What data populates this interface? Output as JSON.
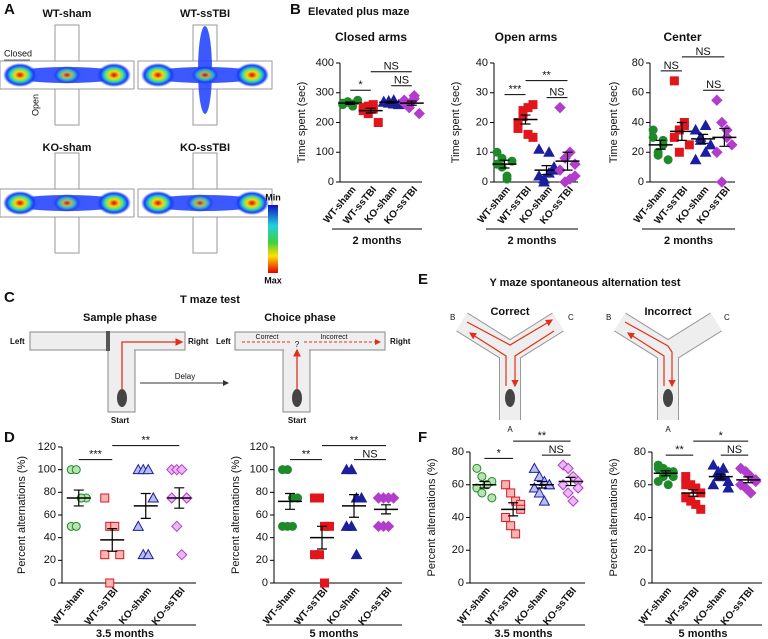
{
  "panel_a": {
    "label": "A",
    "maps": [
      "WT-sham",
      "WT-ssTBI",
      "KO-sham",
      "KO-ssTBI"
    ],
    "closed": "Closed",
    "open": "Open",
    "scale_min": "Min",
    "scale_max": "Max"
  },
  "panel_b": {
    "label": "B",
    "title": "Elevated plus maze"
  },
  "panel_c": {
    "label": "C",
    "title": "T maze test",
    "sample_phase": "Sample phase",
    "choice_phase": "Choice phase",
    "left": "Left",
    "right": "Right",
    "start": "Start",
    "delay": "Delay",
    "correct": "Correct",
    "incorrect": "Incorrect",
    "unknown": "?"
  },
  "panel_d": {
    "label": "D"
  },
  "panel_e": {
    "label": "E",
    "title": "Y maze spontaneous alternation test",
    "correct": "Correct",
    "incorrect": "Incorrect",
    "arm_a": "A",
    "arm_b": "B",
    "arm_c": "C"
  },
  "panel_f": {
    "label": "F"
  },
  "chart_data": [
    {
      "type": "dot",
      "title": "Closed arms",
      "ylabel": "Time spent (sec)",
      "xlabel": "2 months",
      "categories": [
        "WT-sham",
        "WT-ssTBI",
        "KO-sham",
        "KO-ssTBI"
      ],
      "ylim": [
        0,
        400
      ],
      "yticks": [
        0,
        100,
        200,
        300,
        400
      ],
      "annotations": [
        "*",
        "NS",
        "NS"
      ],
      "groups": [
        {
          "marker": "circle",
          "color": "#1f8a2a",
          "fill": "#1f8a2a",
          "points": [
            265,
            270,
            255,
            275,
            260,
            268,
            262
          ],
          "mean": 265,
          "sem": 4
        },
        {
          "marker": "square",
          "color": "#e0161c",
          "fill": "#e0161c",
          "points": [
            250,
            230,
            260,
            200,
            240,
            255,
            245
          ],
          "mean": 240,
          "sem": 8
        },
        {
          "marker": "triangle",
          "color": "#1b1f9e",
          "fill": "#1b1f9e",
          "points": [
            270,
            265,
            275,
            260,
            268,
            272,
            262
          ],
          "mean": 268,
          "sem": 3
        },
        {
          "marker": "diamond",
          "color": "#b23ccc",
          "fill": "#b23ccc",
          "points": [
            275,
            250,
            290,
            230,
            265,
            260,
            280
          ],
          "mean": 265,
          "sem": 7
        }
      ]
    },
    {
      "type": "dot",
      "title": "Open arms",
      "ylabel": "Time spent (sec)",
      "xlabel": "2 months",
      "categories": [
        "WT-sham",
        "WT-ssTBI",
        "KO-sham",
        "KO-ssTBI"
      ],
      "ylim": [
        0,
        40
      ],
      "yticks": [
        0,
        10,
        20,
        30,
        40
      ],
      "annotations": [
        "***",
        "**",
        "NS"
      ],
      "groups": [
        {
          "marker": "circle",
          "color": "#1f8a2a",
          "fill": "#1f8a2a",
          "points": [
            6,
            8,
            2,
            7,
            10,
            5,
            1
          ],
          "mean": 6,
          "sem": 1.3
        },
        {
          "marker": "square",
          "color": "#e0161c",
          "fill": "#e0161c",
          "points": [
            20,
            22,
            25,
            15,
            18,
            24,
            16,
            26
          ],
          "mean": 21,
          "sem": 1.5
        },
        {
          "marker": "triangle",
          "color": "#1b1f9e",
          "fill": "#1b1f9e",
          "points": [
            2,
            1,
            10,
            4,
            11,
            0,
            3,
            5
          ],
          "mean": 4,
          "sem": 1.5
        },
        {
          "marker": "diamond",
          "color": "#b23ccc",
          "fill": "#b23ccc",
          "points": [
            25,
            8,
            10,
            2,
            4,
            0,
            1,
            6
          ],
          "mean": 7,
          "sem": 3
        }
      ]
    },
    {
      "type": "dot",
      "title": "Center",
      "ylabel": "Time spent (sec)",
      "xlabel": "2 months",
      "categories": [
        "WT-sham",
        "WT-ssTBI",
        "KO-sham",
        "KO-ssTBI"
      ],
      "ylim": [
        0,
        80
      ],
      "yticks": [
        0,
        20,
        40,
        60,
        80
      ],
      "annotations": [
        "NS",
        "NS",
        "NS"
      ],
      "groups": [
        {
          "marker": "circle",
          "color": "#1f8a2a",
          "fill": "#1f8a2a",
          "points": [
            35,
            20,
            25,
            15,
            30,
            18,
            28
          ],
          "mean": 25,
          "sem": 3
        },
        {
          "marker": "square",
          "color": "#e0161c",
          "fill": "#e0161c",
          "points": [
            68,
            35,
            40,
            25,
            30,
            20,
            38
          ],
          "mean": 34,
          "sem": 6
        },
        {
          "marker": "triangle",
          "color": "#1b1f9e",
          "fill": "#1b1f9e",
          "points": [
            35,
            30,
            20,
            25,
            15,
            28,
            38
          ],
          "mean": 29,
          "sem": 3
        },
        {
          "marker": "diamond",
          "color": "#b23ccc",
          "fill": "#b23ccc",
          "points": [
            55,
            40,
            30,
            25,
            20,
            0,
            35
          ],
          "mean": 30,
          "sem": 6
        }
      ]
    },
    {
      "type": "dot",
      "ylabel": "Percent alternations (%)",
      "xlabel": "3.5 months",
      "categories": [
        "WT-sham",
        "WT-ssTBI",
        "KO-sham",
        "KO-ssTBI"
      ],
      "ylim": [
        0,
        120
      ],
      "yticks": [
        0,
        20,
        40,
        60,
        80,
        100,
        120
      ],
      "annotations": [
        "***",
        "**"
      ],
      "groups": [
        {
          "marker": "circle",
          "color": "#1f8a2a",
          "fill": "#b9e3b0",
          "points": [
            100,
            100,
            75,
            75,
            50,
            50,
            75
          ],
          "mean": 75,
          "sem": 7
        },
        {
          "marker": "square",
          "color": "#e0161c",
          "fill": "#f7b6b6",
          "points": [
            75,
            50,
            50,
            25,
            25,
            0
          ],
          "mean": 38,
          "sem": 10
        },
        {
          "marker": "triangle",
          "color": "#1b1f9e",
          "fill": "#b9bdf0",
          "points": [
            100,
            100,
            100,
            75,
            50,
            25,
            25,
            75
          ],
          "mean": 68,
          "sem": 11
        },
        {
          "marker": "diamond",
          "color": "#b23ccc",
          "fill": "#ebb9f2",
          "points": [
            100,
            100,
            100,
            75,
            75,
            50,
            25,
            75
          ],
          "mean": 75,
          "sem": 9
        }
      ]
    },
    {
      "type": "dot",
      "ylabel": "Percent alternations (%)",
      "xlabel": "5 months",
      "categories": [
        "WT-sham",
        "WT-ssTBI",
        "KO-sham",
        "KO-ssTBI"
      ],
      "ylim": [
        0,
        120
      ],
      "yticks": [
        0,
        20,
        40,
        60,
        80,
        100,
        120
      ],
      "annotations": [
        "**",
        "**",
        "NS"
      ],
      "groups": [
        {
          "marker": "circle",
          "color": "#1f8a2a",
          "fill": "#1f8a2a",
          "points": [
            100,
            100,
            75,
            75,
            50,
            50,
            50,
            75
          ],
          "mean": 72,
          "sem": 7
        },
        {
          "marker": "square",
          "color": "#e0161c",
          "fill": "#e0161c",
          "points": [
            75,
            75,
            50,
            50,
            25,
            25,
            0
          ],
          "mean": 40,
          "sem": 10
        },
        {
          "marker": "triangle",
          "color": "#1b1f9e",
          "fill": "#1b1f9e",
          "points": [
            100,
            100,
            75,
            75,
            50,
            50,
            25
          ],
          "mean": 68,
          "sem": 10
        },
        {
          "marker": "diamond",
          "color": "#b23ccc",
          "fill": "#b23ccc",
          "points": [
            75,
            75,
            75,
            75,
            50,
            50,
            50
          ],
          "mean": 65,
          "sem": 4
        }
      ]
    },
    {
      "type": "dot",
      "ylabel": "Percent alternations (%)",
      "xlabel": "3.5 months",
      "categories": [
        "WT-sham",
        "WT-ssTBI",
        "KO-sham",
        "KO-ssTBI"
      ],
      "ylim": [
        0,
        80
      ],
      "yticks": [
        0,
        20,
        40,
        60,
        80
      ],
      "annotations": [
        "*",
        "**",
        "NS"
      ],
      "groups": [
        {
          "marker": "circle",
          "color": "#1f8a2a",
          "fill": "#b9e3b0",
          "points": [
            70,
            65,
            60,
            62,
            58,
            55,
            60,
            52
          ],
          "mean": 60,
          "sem": 2
        },
        {
          "marker": "square",
          "color": "#e0161c",
          "fill": "#f7b6b6",
          "points": [
            60,
            55,
            50,
            48,
            40,
            35,
            30,
            45
          ],
          "mean": 45,
          "sem": 4
        },
        {
          "marker": "triangle",
          "color": "#1b1f9e",
          "fill": "#b9bdf0",
          "points": [
            70,
            65,
            62,
            60,
            58,
            55,
            50,
            60
          ],
          "mean": 60,
          "sem": 2
        },
        {
          "marker": "diamond",
          "color": "#b23ccc",
          "fill": "#ebb9f2",
          "points": [
            72,
            70,
            65,
            62,
            60,
            55,
            50,
            58
          ],
          "mean": 62,
          "sem": 2.5
        }
      ]
    },
    {
      "type": "dot",
      "ylabel": "Percent alternations (%)",
      "xlabel": "5 months",
      "categories": [
        "WT-sham",
        "WT-ssTBI",
        "KO-sham",
        "KO-ssTBI"
      ],
      "ylim": [
        0,
        80
      ],
      "yticks": [
        0,
        20,
        40,
        60,
        80
      ],
      "annotations": [
        "**",
        "*",
        "NS"
      ],
      "groups": [
        {
          "marker": "circle",
          "color": "#1f8a2a",
          "fill": "#1f8a2a",
          "points": [
            72,
            70,
            68,
            65,
            62,
            65,
            60,
            68,
            70
          ],
          "mean": 67,
          "sem": 1.5
        },
        {
          "marker": "square",
          "color": "#e0161c",
          "fill": "#e0161c",
          "points": [
            65,
            60,
            58,
            55,
            52,
            50,
            48,
            45,
            60
          ],
          "mean": 55,
          "sem": 2
        },
        {
          "marker": "triangle",
          "color": "#1b1f9e",
          "fill": "#1b1f9e",
          "points": [
            72,
            68,
            65,
            62,
            60,
            65,
            70,
            58
          ],
          "mean": 65,
          "sem": 1.5
        },
        {
          "marker": "diamond",
          "color": "#b23ccc",
          "fill": "#b23ccc",
          "points": [
            70,
            68,
            65,
            62,
            60,
            58,
            55,
            63
          ],
          "mean": 63,
          "sem": 1.8
        }
      ]
    }
  ]
}
